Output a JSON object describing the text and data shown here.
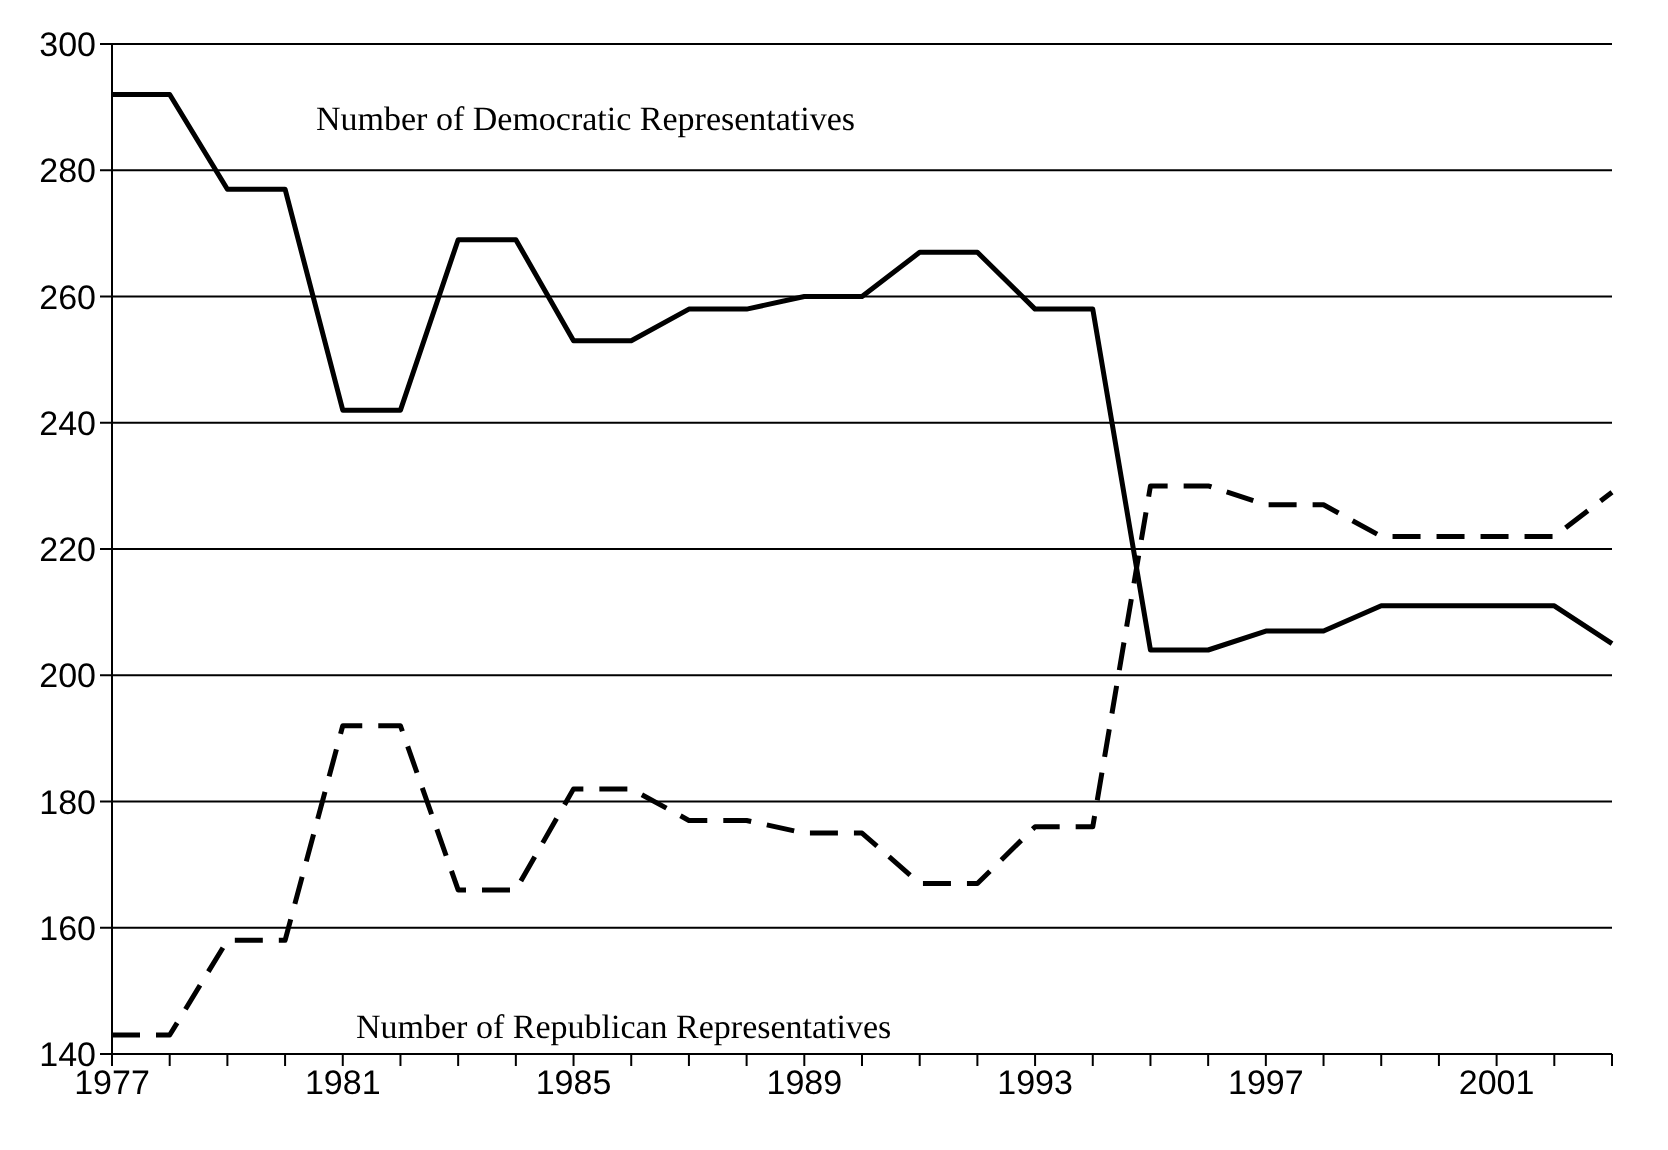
{
  "chart_data": {
    "type": "line",
    "categories": [
      "1977",
      null,
      null,
      null,
      "1981",
      null,
      null,
      null,
      "1985",
      null,
      null,
      null,
      "1989",
      null,
      null,
      null,
      "1993",
      null,
      null,
      null,
      "1997",
      null,
      null,
      null,
      "2001",
      null,
      null
    ],
    "series": [
      {
        "color": "#000000",
        "line_style": "solid",
        "values": [
          292,
          292,
          277,
          277,
          242,
          242,
          269,
          269,
          253,
          253,
          258,
          258,
          260,
          260,
          267,
          267,
          258,
          258,
          204,
          204,
          207,
          207,
          211,
          211,
          211,
          211,
          205
        ]
      },
      {
        "color": "#000000",
        "line_style": "dashed",
        "values": [
          143,
          143,
          158,
          158,
          192,
          192,
          166,
          166,
          182,
          182,
          177,
          177,
          175,
          175,
          167,
          167,
          176,
          176,
          230,
          230,
          227,
          227,
          222,
          222,
          222,
          222,
          229
        ]
      }
    ],
    "ylim": [
      140,
      300
    ],
    "yticks": [
      140,
      160,
      180,
      200,
      220,
      240,
      260,
      280,
      300
    ],
    "grid": "y",
    "legend": false,
    "marker": "none",
    "annotations": [
      "Number of Democratic Representatives",
      "Number of Republican Representatives"
    ]
  }
}
